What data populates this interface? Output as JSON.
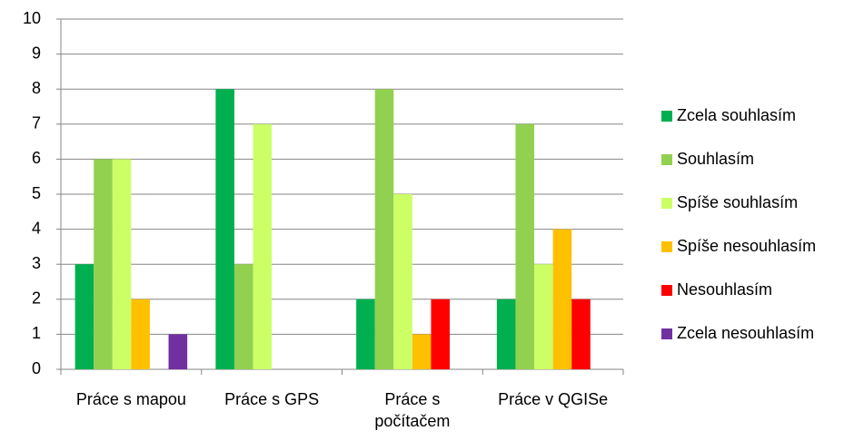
{
  "chart_data": {
    "type": "bar",
    "categories": [
      "Práce s mapou",
      "Práce s GPS",
      "Práce s počítačem",
      "Práce v QGISe"
    ],
    "series": [
      {
        "name": "Zcela souhlasím",
        "color": "#00b050",
        "values": [
          3,
          8,
          2,
          2
        ]
      },
      {
        "name": "Souhlasím",
        "color": "#92d050",
        "values": [
          6,
          3,
          8,
          7
        ]
      },
      {
        "name": "Spíše souhlasím",
        "color": "#ccff66",
        "values": [
          6,
          7,
          5,
          3
        ]
      },
      {
        "name": "Spíše nesouhlasím",
        "color": "#ffc000",
        "values": [
          2,
          0,
          1,
          4
        ]
      },
      {
        "name": "Nesouhlasím",
        "color": "#ff0000",
        "values": [
          0,
          0,
          2,
          2
        ]
      },
      {
        "name": "Zcela nesouhlasím",
        "color": "#7030a0",
        "values": [
          1,
          0,
          0,
          0
        ]
      }
    ],
    "ylim": [
      0,
      10
    ],
    "yticks": [
      0,
      1,
      2,
      3,
      4,
      5,
      6,
      7,
      8,
      9,
      10
    ],
    "grid": true,
    "legend": "right"
  }
}
